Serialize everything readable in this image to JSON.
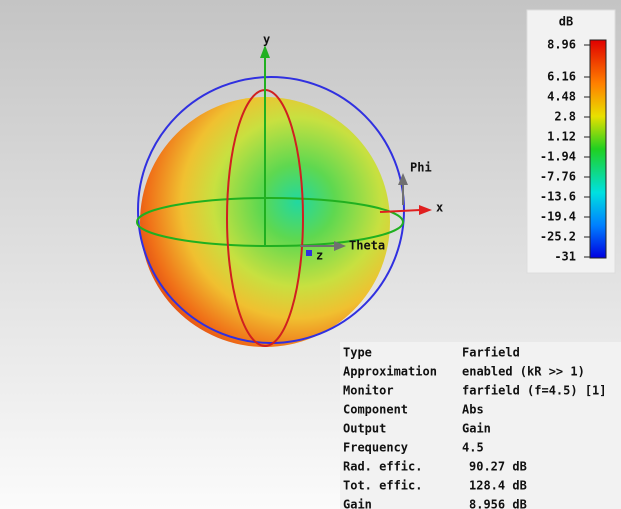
{
  "colorbar": {
    "title": "dB",
    "ticks": [
      8.96,
      6.16,
      4.48,
      2.8,
      1.12,
      -1.94,
      -7.76,
      -13.6,
      -19.4,
      -25.2,
      -31
    ]
  },
  "axes": {
    "y": "y",
    "x": "x",
    "z": "z",
    "phi": "Phi",
    "theta": "Theta"
  },
  "info": {
    "rows": [
      [
        "Type",
        "Farfield"
      ],
      [
        "Approximation",
        "enabled (kR >> 1)"
      ],
      [
        "Monitor",
        "farfield (f=4.5) [1]"
      ],
      [
        "Component",
        "Abs"
      ],
      [
        "Output",
        "Gain"
      ],
      [
        "Frequency",
        "4.5"
      ],
      [
        "Rad. effic.",
        "90.27 dB"
      ],
      [
        "Tot. effic.",
        "128.4 dB"
      ],
      [
        "Gain",
        "8.956 dB"
      ]
    ]
  }
}
